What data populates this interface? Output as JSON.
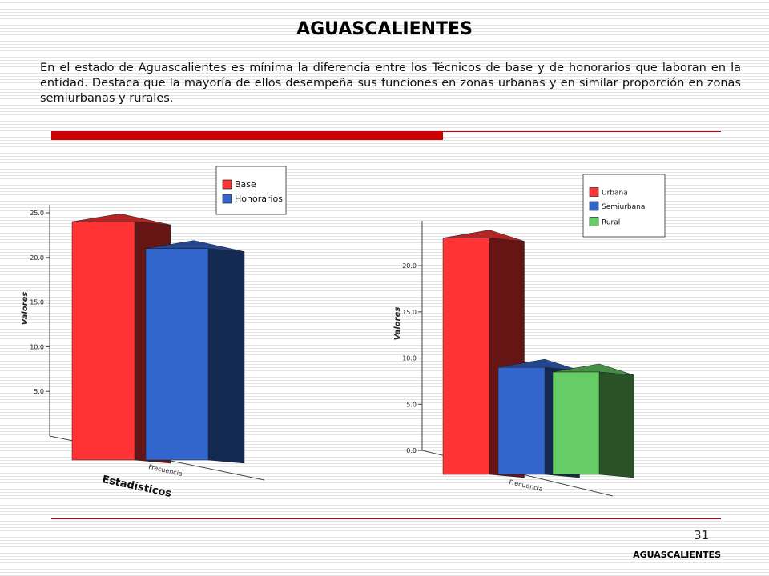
{
  "header": {
    "title": "AGUASCALIENTES"
  },
  "body": {
    "text": "En el estado de Aguascalientes es mínima la diferencia entre los Técnicos de base y de honorarios que laboran en la entidad. Destaca que la mayoría de ellos desempeña sus funciones en zonas urbanas y en similar proporción en zonas semiurbanas y rurales."
  },
  "footer": {
    "page": "31",
    "label": "AGUASCALIENTES"
  },
  "chart_data": [
    {
      "type": "bar",
      "y_label": "Valores",
      "x_label": "Estadísticos",
      "categories": [
        "Frecuencia"
      ],
      "series": [
        {
          "name": "Base",
          "color": "#ff3333",
          "values": [
            24
          ]
        },
        {
          "name": "Honorarios",
          "color": "#3366cc",
          "values": [
            21
          ]
        }
      ],
      "ylim": [
        0,
        25
      ],
      "yticks": [
        {
          "value": 5,
          "label": "5.0"
        },
        {
          "value": 10,
          "label": "10.0"
        },
        {
          "value": 15,
          "label": "15.0"
        },
        {
          "value": 20,
          "label": "20.0"
        },
        {
          "value": 25,
          "label": "25.0"
        }
      ]
    },
    {
      "type": "bar",
      "y_label": "Valores",
      "categories": [
        "Frecuencia"
      ],
      "series": [
        {
          "name": "Urbana",
          "color": "#ff3333",
          "values": [
            23
          ]
        },
        {
          "name": "Semiurbana",
          "color": "#3366cc",
          "values": [
            9
          ]
        },
        {
          "name": "Rural",
          "color": "#66cc66",
          "values": [
            8.5
          ]
        }
      ],
      "ylim": [
        0,
        24
      ],
      "yticks": [
        {
          "value": 0,
          "label": "0.0"
        },
        {
          "value": 5,
          "label": "5.0"
        },
        {
          "value": 10,
          "label": "10.0"
        },
        {
          "value": 15,
          "label": "15.0"
        },
        {
          "value": 20,
          "label": "20.0"
        }
      ]
    }
  ]
}
